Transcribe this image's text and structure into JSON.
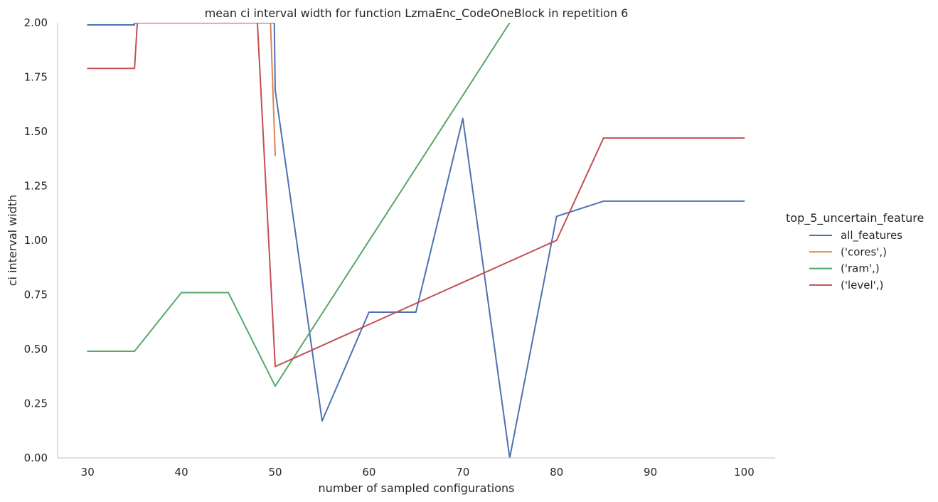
{
  "chart_data": {
    "type": "line",
    "title": "mean ci interval width for function LzmaEnc_CodeOneBlock in repetition 6",
    "xlabel": "number of sampled configurations",
    "ylabel": "ci interval width",
    "xlim": [
      26.8,
      103.3
    ],
    "ylim": [
      0,
      2
    ],
    "xticks": [
      30,
      40,
      50,
      60,
      70,
      80,
      90,
      100
    ],
    "yticks": [
      0,
      0.25,
      0.5,
      0.75,
      1.0,
      1.25,
      1.5,
      1.75,
      2.0
    ],
    "xtick_labels": [
      "30",
      "40",
      "50",
      "60",
      "70",
      "80",
      "90",
      "100"
    ],
    "ytick_labels": [
      "0.00",
      "0.25",
      "0.50",
      "0.75",
      "1.00",
      "1.25",
      "1.50",
      "1.75",
      "2.00"
    ],
    "grid": false,
    "legend": {
      "title": "top_5_uncertain_feature",
      "placement": "right"
    },
    "series": [
      {
        "name": "all_features",
        "color": "#4c72b0",
        "points": [
          [
            30,
            1.99
          ],
          [
            35,
            1.99
          ],
          [
            35,
            2.0
          ],
          [
            49.9,
            2.0
          ],
          [
            50,
            1.69
          ],
          [
            55,
            0.17
          ],
          [
            60,
            0.67
          ],
          [
            65,
            0.67
          ],
          [
            70,
            1.56
          ],
          [
            75,
            0.0
          ],
          [
            80,
            1.11
          ],
          [
            85,
            1.18
          ],
          [
            90,
            1.18
          ],
          [
            95,
            1.18
          ],
          [
            100,
            1.18
          ]
        ]
      },
      {
        "name": "('cores',)",
        "color": "#dd8452",
        "points": [
          [
            49.5,
            2.0
          ],
          [
            50,
            1.39
          ]
        ]
      },
      {
        "name": "('ram',)",
        "color": "#55a868",
        "points": [
          [
            30,
            0.49
          ],
          [
            35,
            0.49
          ],
          [
            40,
            0.76
          ],
          [
            45,
            0.76
          ],
          [
            50,
            0.33
          ],
          [
            75,
            2.0
          ]
        ]
      },
      {
        "name": "('level',)",
        "color": "#c44e52",
        "points": [
          [
            30,
            1.79
          ],
          [
            35,
            1.79
          ],
          [
            35.3,
            2.0
          ],
          [
            48.1,
            2.0
          ],
          [
            50,
            0.42
          ],
          [
            80,
            1.0
          ],
          [
            85,
            1.47
          ],
          [
            90,
            1.47
          ],
          [
            95,
            1.47
          ],
          [
            100,
            1.47
          ]
        ]
      }
    ]
  }
}
